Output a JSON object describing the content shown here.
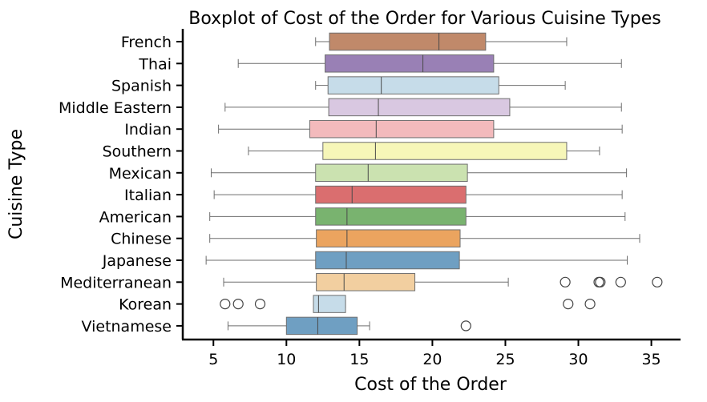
{
  "chart_data": {
    "type": "boxplot",
    "title": "Boxplot of Cost of the Order for Various Cuisine Types",
    "xlabel": "Cost of the Order",
    "ylabel": "Cuisine Type",
    "xlim": [
      2.9,
      37.0
    ],
    "xticks": [
      5,
      10,
      15,
      20,
      25,
      30,
      35
    ],
    "grid": false,
    "legend": "none",
    "categories": [
      {
        "name": "French",
        "color": "#c0896a",
        "q1": 12.95,
        "median": 20.45,
        "q3": 23.65,
        "whisker_low": 12.0,
        "whisker_high": 29.2,
        "outliers": []
      },
      {
        "name": "Thai",
        "color": "#9980b5",
        "q1": 12.65,
        "median": 19.35,
        "q3": 24.2,
        "whisker_low": 6.7,
        "whisker_high": 32.95,
        "outliers": []
      },
      {
        "name": "Spanish",
        "color": "#c6dce9",
        "q1": 12.85,
        "median": 16.5,
        "q3": 24.55,
        "whisker_low": 12.0,
        "whisker_high": 29.1,
        "outliers": []
      },
      {
        "name": "Middle Eastern",
        "color": "#d9c8e1",
        "q1": 12.9,
        "median": 16.3,
        "q3": 25.3,
        "whisker_low": 5.8,
        "whisker_high": 32.95,
        "outliers": []
      },
      {
        "name": "Indian",
        "color": "#f3babc",
        "q1": 11.6,
        "median": 16.15,
        "q3": 24.2,
        "whisker_low": 5.35,
        "whisker_high": 33.0,
        "outliers": []
      },
      {
        "name": "Southern",
        "color": "#f6f6b8",
        "q1": 12.5,
        "median": 16.1,
        "q3": 29.2,
        "whisker_low": 7.4,
        "whisker_high": 31.45,
        "outliers": []
      },
      {
        "name": "Mexican",
        "color": "#cbe2b0",
        "q1": 12.0,
        "median": 15.6,
        "q3": 22.4,
        "whisker_low": 4.85,
        "whisker_high": 33.3,
        "outliers": []
      },
      {
        "name": "Italian",
        "color": "#da6e6f",
        "q1": 12.0,
        "median": 14.5,
        "q3": 22.3,
        "whisker_low": 5.05,
        "whisker_high": 33.0,
        "outliers": []
      },
      {
        "name": "American",
        "color": "#79b36f",
        "q1": 12.0,
        "median": 14.15,
        "q3": 22.3,
        "whisker_low": 4.75,
        "whisker_high": 33.2,
        "outliers": []
      },
      {
        "name": "Chinese",
        "color": "#eba45f",
        "q1": 12.05,
        "median": 14.15,
        "q3": 21.9,
        "whisker_low": 4.75,
        "whisker_high": 34.2,
        "outliers": []
      },
      {
        "name": "Japanese",
        "color": "#6f9fc2",
        "q1": 12.0,
        "median": 14.1,
        "q3": 21.85,
        "whisker_low": 4.5,
        "whisker_high": 33.35,
        "outliers": []
      },
      {
        "name": "Mediterranean",
        "color": "#f2cfa0",
        "q1": 12.05,
        "median": 13.95,
        "q3": 18.8,
        "whisker_low": 5.7,
        "whisker_high": 25.2,
        "outliers": [
          29.1,
          31.4,
          31.5,
          32.9,
          35.4
        ]
      },
      {
        "name": "Korean",
        "color": "#c6dce9",
        "q1": 11.85,
        "median": 12.2,
        "q3": 14.05,
        "whisker_low": 11.85,
        "whisker_high": 14.05,
        "outliers": [
          5.8,
          6.7,
          8.2,
          29.3,
          30.8
        ]
      },
      {
        "name": "Vietnamese",
        "color": "#6f9fc2",
        "q1": 10.0,
        "median": 12.15,
        "q3": 14.85,
        "whisker_low": 6.0,
        "whisker_high": 15.7,
        "outliers": [
          22.3
        ]
      }
    ]
  }
}
